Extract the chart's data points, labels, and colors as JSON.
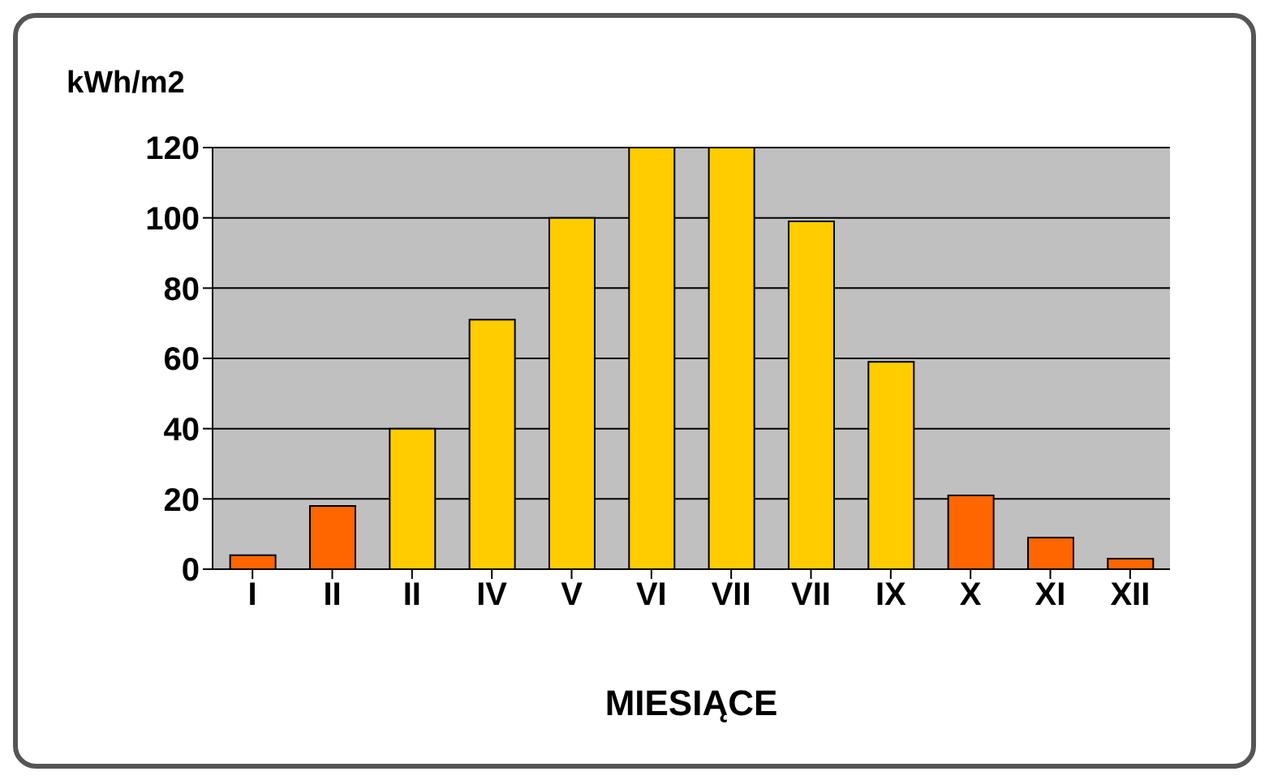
{
  "chart_data": {
    "type": "bar",
    "ylabel": "kWh/m2",
    "xlabel": "MIESIĄCE",
    "categories": [
      "I",
      "II",
      "II",
      "IV",
      "V",
      "VI",
      "VII",
      "VII",
      "IX",
      "X",
      "XI",
      "XII"
    ],
    "values": [
      4,
      18,
      40,
      71,
      100,
      120,
      120,
      99,
      59,
      21,
      9,
      3
    ],
    "colors": [
      "#ff6600",
      "#ff6600",
      "#ffcc00",
      "#ffcc00",
      "#ffcc00",
      "#ffcc00",
      "#ffcc00",
      "#ffcc00",
      "#ffcc00",
      "#ff6600",
      "#ff6600",
      "#ff6600"
    ],
    "ylim": [
      0,
      120
    ],
    "yticks": [
      0,
      20,
      40,
      60,
      80,
      100,
      120
    ],
    "grid": "y"
  }
}
